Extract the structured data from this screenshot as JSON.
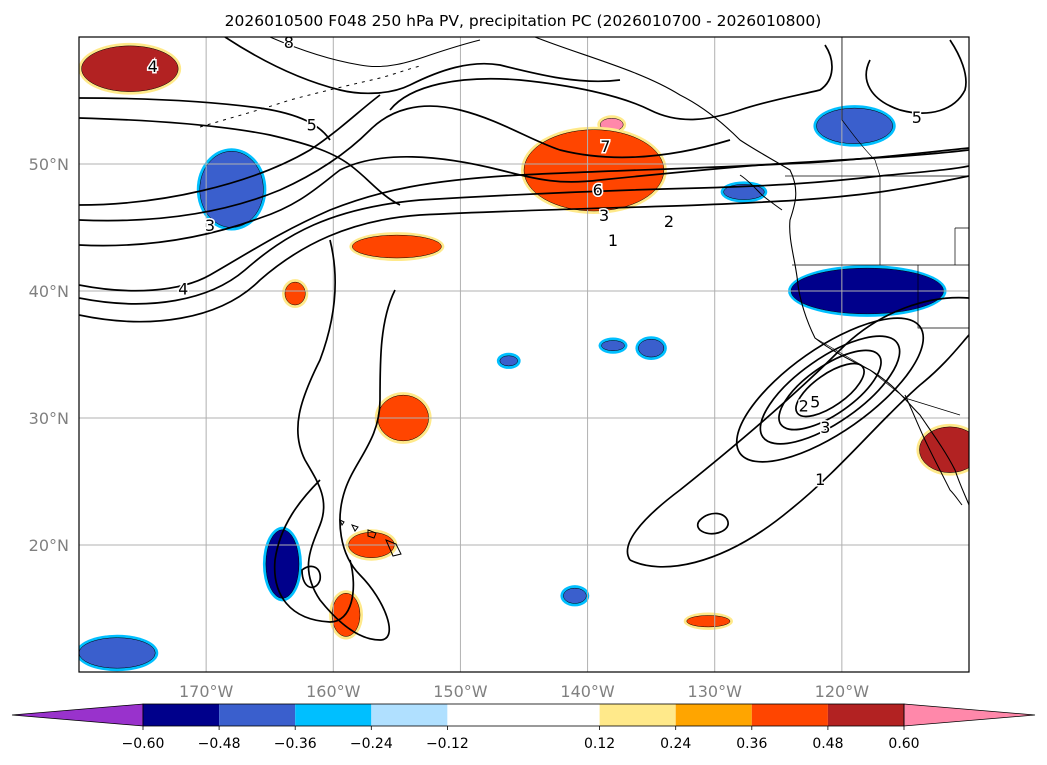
{
  "chart_data": {
    "type": "contour_map",
    "title": "2026010500 F048 250 hPa PV, precipitation PC (2026010700 - 2026010800)",
    "map": {
      "lon_range": [
        -180,
        -110
      ],
      "lat_range": [
        10,
        60
      ],
      "lon_ticks": [
        {
          "value": -170,
          "label": "170°W"
        },
        {
          "value": -160,
          "label": "160°W"
        },
        {
          "value": -150,
          "label": "150°W"
        },
        {
          "value": -140,
          "label": "140°W"
        },
        {
          "value": -130,
          "label": "130°W"
        },
        {
          "value": -120,
          "label": "120°W"
        }
      ],
      "lat_ticks": [
        {
          "value": 20,
          "label": "20°N"
        },
        {
          "value": 30,
          "label": "30°N"
        },
        {
          "value": 40,
          "label": "40°N"
        },
        {
          "value": 50,
          "label": "50°N"
        }
      ],
      "grid": true
    },
    "colorbar": {
      "orientation": "horizontal",
      "extend": "both",
      "ticks": [
        {
          "value": -0.6,
          "label": "−0.60"
        },
        {
          "value": -0.48,
          "label": "−0.48"
        },
        {
          "value": -0.36,
          "label": "−0.36"
        },
        {
          "value": -0.24,
          "label": "−0.24"
        },
        {
          "value": -0.12,
          "label": "−0.12"
        },
        {
          "value": 0.12,
          "label": "0.12"
        },
        {
          "value": 0.24,
          "label": "0.24"
        },
        {
          "value": 0.36,
          "label": "0.36"
        },
        {
          "value": 0.48,
          "label": "0.48"
        },
        {
          "value": 0.6,
          "label": "0.60"
        }
      ],
      "under_color": "#9932CC",
      "over_color": "#FF88AA",
      "bins": [
        {
          "min": -0.6,
          "max": -0.48,
          "color": "#00008B"
        },
        {
          "min": -0.48,
          "max": -0.36,
          "color": "#3A5FCD"
        },
        {
          "min": -0.36,
          "max": -0.24,
          "color": "#00BFFF"
        },
        {
          "min": -0.24,
          "max": -0.12,
          "color": "#B0E0FF"
        },
        {
          "min": -0.12,
          "max": 0.12,
          "color": "#FFFFFF"
        },
        {
          "min": 0.12,
          "max": 0.24,
          "color": "#FFE98A"
        },
        {
          "min": 0.24,
          "max": 0.36,
          "color": "#FFA500"
        },
        {
          "min": 0.36,
          "max": 0.48,
          "color": "#FF4500"
        },
        {
          "min": 0.48,
          "max": 0.6,
          "color": "#B22222"
        }
      ]
    },
    "pv_contour_labels": [
      {
        "label": "8",
        "lon": -163.5,
        "lat": 59.6
      },
      {
        "label": "7",
        "lon": -138.6,
        "lat": 51.4
      },
      {
        "label": "6",
        "lon": -139.2,
        "lat": 48.0
      },
      {
        "label": "5",
        "lon": -161.7,
        "lat": 53.1
      },
      {
        "label": "5",
        "lon": -114.1,
        "lat": 53.7
      },
      {
        "label": "4",
        "lon": -174.2,
        "lat": 57.7
      },
      {
        "label": "4",
        "lon": -171.8,
        "lat": 40.2
      },
      {
        "label": "3",
        "lon": -169.7,
        "lat": 45.2
      },
      {
        "label": "3",
        "lon": -138.7,
        "lat": 46.0
      },
      {
        "label": "2",
        "lon": -133.6,
        "lat": 45.5
      },
      {
        "label": "1",
        "lon": -138.0,
        "lat": 44.0
      },
      {
        "label": "1",
        "lon": -121.7,
        "lat": 25.2
      },
      {
        "label": "2",
        "lon": -123.0,
        "lat": 31.0
      },
      {
        "label": "3",
        "lon": -121.3,
        "lat": 29.3
      },
      {
        "label": "5",
        "lon": -122.1,
        "lat": 31.3
      }
    ],
    "precip_pc_regions": [
      {
        "name": "gulf-of-alaska-positive-core",
        "value": 0.62,
        "center": [
          -138.1,
          53.1
        ],
        "radius": [
          0.9,
          0.5
        ]
      },
      {
        "name": "gulf-of-alaska-positive",
        "value": 0.4,
        "center": [
          -139.5,
          49.5
        ],
        "radius": [
          5.5,
          3.2
        ]
      },
      {
        "name": "bering-positive",
        "value": 0.5,
        "center": [
          -176.0,
          57.5
        ],
        "radius": [
          3.8,
          1.8
        ]
      },
      {
        "name": "north-pacific-positive",
        "value": 0.4,
        "center": [
          -155.0,
          43.5
        ],
        "radius": [
          3.5,
          0.9
        ]
      },
      {
        "name": "positive-near-hawaii-north",
        "value": 0.4,
        "center": [
          -154.5,
          30.0
        ],
        "radius": [
          2.0,
          1.8
        ]
      },
      {
        "name": "positive-small-40n",
        "value": 0.4,
        "center": [
          -163.0,
          39.8
        ],
        "radius": [
          0.8,
          0.9
        ]
      },
      {
        "name": "positive-hawaii",
        "value": 0.4,
        "center": [
          -157.0,
          20.0
        ],
        "radius": [
          1.8,
          1.0
        ]
      },
      {
        "name": "positive-south-hawaii",
        "value": 0.4,
        "center": [
          -159.0,
          14.5
        ],
        "radius": [
          1.1,
          1.7
        ]
      },
      {
        "name": "positive-tropical-east",
        "value": 0.4,
        "center": [
          -130.5,
          14.0
        ],
        "radius": [
          1.7,
          0.45
        ]
      },
      {
        "name": "baja-positive",
        "value": 0.5,
        "center": [
          -111.5,
          27.5
        ],
        "radius": [
          2.4,
          1.8
        ]
      },
      {
        "name": "west-coast-negative",
        "value": -0.5,
        "center": [
          -118.0,
          40.0
        ],
        "radius": [
          6.0,
          1.8
        ]
      },
      {
        "name": "aleutian-negative",
        "value": -0.4,
        "center": [
          -168.0,
          48.0
        ],
        "radius": [
          2.5,
          3.0
        ]
      },
      {
        "name": "gulf-alaska-negative",
        "value": -0.4,
        "center": [
          -119.0,
          53.0
        ],
        "radius": [
          3.0,
          1.4
        ]
      },
      {
        "name": "negative-near-hawaii",
        "value": -0.5,
        "center": [
          -164.0,
          18.5
        ],
        "radius": [
          1.3,
          2.7
        ]
      },
      {
        "name": "negative-southwest-corner",
        "value": -0.4,
        "center": [
          -177.0,
          11.5
        ],
        "radius": [
          3.0,
          1.2
        ]
      },
      {
        "name": "negative-small-1",
        "value": -0.4,
        "center": [
          -146.2,
          34.5
        ],
        "radius": [
          0.7,
          0.4
        ]
      },
      {
        "name": "negative-small-2",
        "value": -0.4,
        "center": [
          -138.0,
          35.7
        ],
        "radius": [
          0.9,
          0.4
        ]
      },
      {
        "name": "negative-small-3",
        "value": -0.4,
        "center": [
          -135.0,
          35.5
        ],
        "radius": [
          1.0,
          0.7
        ]
      },
      {
        "name": "negative-small-4",
        "value": -0.4,
        "center": [
          -127.7,
          47.8
        ],
        "radius": [
          1.6,
          0.6
        ]
      },
      {
        "name": "negative-small-5",
        "value": -0.4,
        "center": [
          -141.0,
          16.0
        ],
        "radius": [
          0.9,
          0.6
        ]
      }
    ]
  }
}
